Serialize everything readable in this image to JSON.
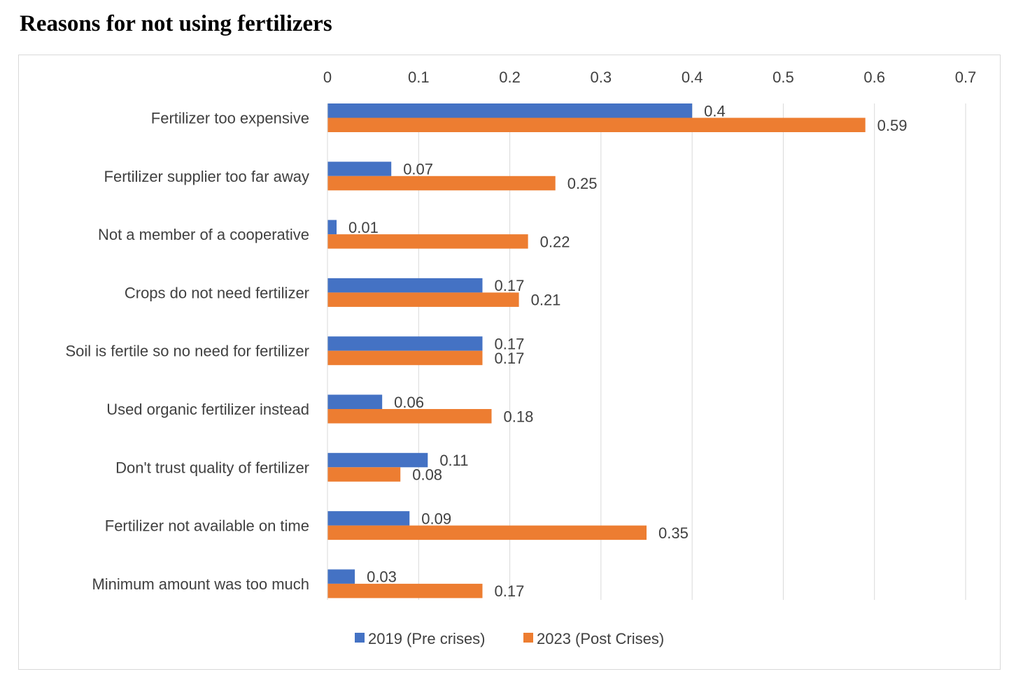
{
  "page_title": "Reasons for not using fertilizers",
  "chart_data": {
    "type": "bar",
    "orientation": "horizontal",
    "title": "",
    "xlabel": "",
    "ylabel": "",
    "xlim": [
      0,
      0.7
    ],
    "x_ticks": [
      "0",
      "0.1",
      "0.2",
      "0.3",
      "0.4",
      "0.5",
      "0.6",
      "0.7"
    ],
    "x_axis_position": "top",
    "grid": true,
    "legend": "bottom",
    "categories": [
      "Fertilizer too expensive",
      "Fertilizer supplier too far away",
      "Not a member of a cooperative",
      "Crops do not need fertilizer",
      "Soil is fertile so no need for fertilizer",
      "Used organic fertilizer instead",
      "Don't trust quality of fertilizer",
      "Fertilizer not available on time",
      "Minimum amount was too much"
    ],
    "series": [
      {
        "name": "2019 (Pre crises)",
        "color": "#4472c4",
        "values": [
          0.4,
          0.07,
          0.01,
          0.17,
          0.17,
          0.06,
          0.11,
          0.09,
          0.03
        ],
        "labels": [
          "0.4",
          "0.07",
          "0.01",
          "0.17",
          "0.17",
          "0.06",
          "0.11",
          "0.09",
          "0.03"
        ]
      },
      {
        "name": "2023 (Post Crises)",
        "color": "#ed7d31",
        "values": [
          0.59,
          0.25,
          0.22,
          0.21,
          0.17,
          0.18,
          0.08,
          0.35,
          0.17
        ],
        "labels": [
          "0.59",
          "0.25",
          "0.22",
          "0.21",
          "0.17",
          "0.18",
          "0.08",
          "0.35",
          "0.17"
        ]
      }
    ]
  }
}
